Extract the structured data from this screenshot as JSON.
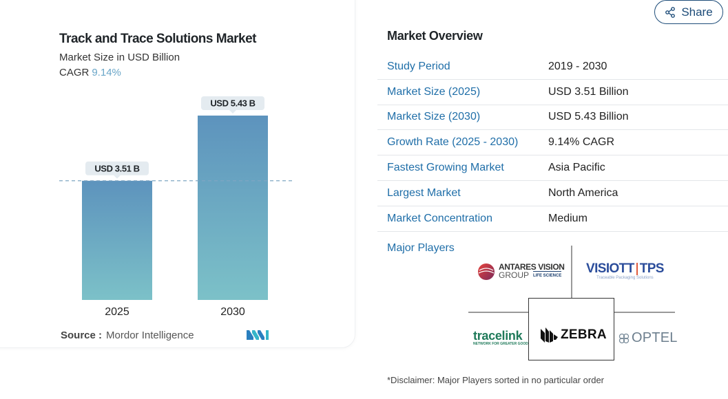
{
  "share": {
    "label": "Share"
  },
  "chart_data": {
    "type": "bar",
    "title": "Track and Trace Solutions Market",
    "subtitle": "Market Size in USD Billion",
    "cagr_label": "CAGR",
    "cagr_value": "9.14%",
    "categories": [
      "2025",
      "2030"
    ],
    "values": [
      3.51,
      5.43
    ],
    "data_labels": [
      "USD 3.51 B",
      "USD 5.43 B"
    ],
    "ylim": [
      0,
      5.43
    ],
    "colors": {
      "bar_top": "#5d93bd",
      "bar_bottom": "#7cc1c8",
      "reference_line": "#7ea6c2"
    }
  },
  "source": {
    "label": "Source :",
    "value": "Mordor Intelligence"
  },
  "overview": {
    "title": "Market Overview",
    "rows": [
      {
        "label": "Study Period",
        "value": "2019 - 2030"
      },
      {
        "label": "Market Size (2025)",
        "value": "USD 3.51 Billion"
      },
      {
        "label": "Market Size (2030)",
        "value": "USD 5.43 Billion"
      },
      {
        "label": "Growth Rate (2025 - 2030)",
        "value": "9.14% CAGR"
      },
      {
        "label": "Fastest Growing Market",
        "value": "Asia Pacific"
      },
      {
        "label": "Largest Market",
        "value": "North America"
      },
      {
        "label": "Market Concentration",
        "value": "Medium"
      }
    ]
  },
  "players": {
    "title": "Major Players",
    "logos": {
      "antares_1": "ANTARES VISION",
      "antares_2": "GROUP",
      "antares_3": "LIFE SCIENCE",
      "visiott_1": "VISIOTT",
      "visiott_2": "TPS",
      "visiott_3": "Traceable Packaging Solutions",
      "tracelink_1": "tracelink",
      "tracelink_2": "NETWORK FOR GREATER GOOD",
      "zebra": "ZEBRA",
      "optel": "OPTEL"
    }
  },
  "disclaimer": "*Disclaimer: Major Players sorted in no particular order"
}
